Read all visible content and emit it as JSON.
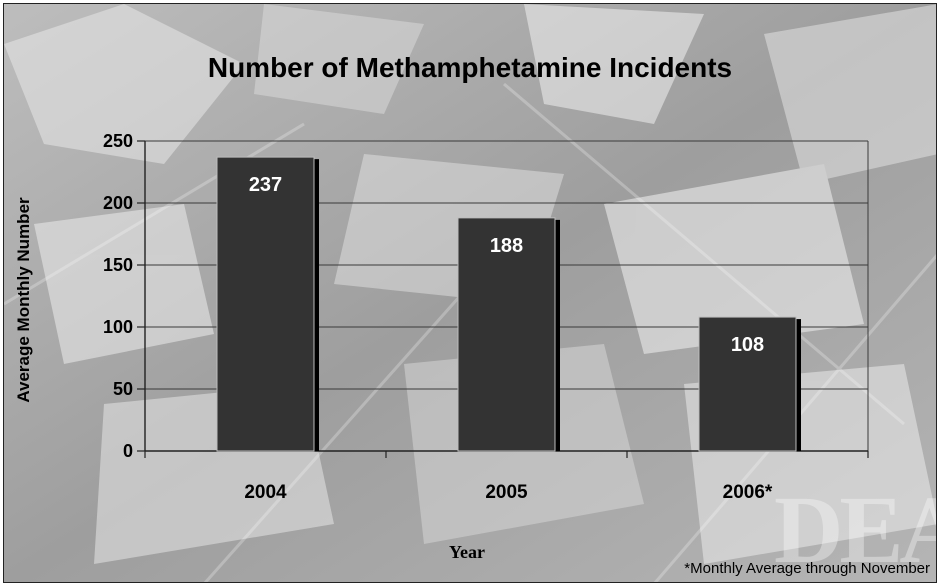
{
  "colors": {
    "bar": "#333333",
    "bar_shadow": "#000000",
    "bar_edge": "#bdbdbd",
    "gridline": "#3a3a3a",
    "axis": "#222222",
    "data_label": "#ffffff"
  },
  "chart_data": {
    "type": "bar",
    "title": "Number of Methamphetamine Incidents",
    "xlabel": "Year",
    "ylabel": "Average Monthly Number",
    "categories": [
      "2004",
      "2005",
      "2006*"
    ],
    "values": [
      237,
      188,
      108
    ],
    "data_labels": [
      "237",
      "188",
      "108"
    ],
    "ylim": [
      0,
      250
    ],
    "yticks": [
      0,
      50,
      100,
      150,
      200,
      250
    ],
    "ytick_labels": [
      "0",
      "50",
      "100",
      "150",
      "200",
      "250"
    ],
    "grid": true,
    "footnote": "*Monthly Average through November"
  }
}
